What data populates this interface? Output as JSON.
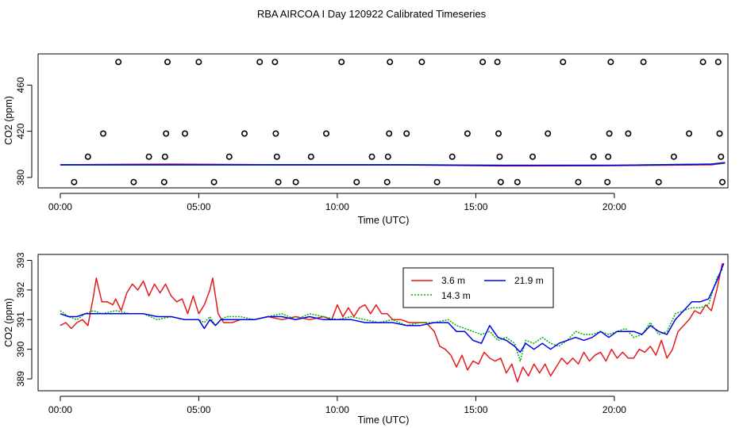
{
  "figure": {
    "title": "RBA AIRCOA I  Day 120922  Calibrated Timeseries"
  },
  "colors": {
    "marker": "#000000",
    "red": "#e41a1c",
    "green": "#00b000",
    "blue": "#0000ee"
  },
  "chart_data": [
    {
      "type": "scatter",
      "title": "",
      "xlabel": "Time (UTC)",
      "ylabel": "CO2 (ppm)",
      "xlim": [
        -0.8,
        24.1
      ],
      "ylim": [
        371,
        487
      ],
      "x_ticks": [
        0,
        5,
        10,
        15,
        20
      ],
      "x_tick_labels": [
        "00:00",
        "05:00",
        "10:00",
        "15:00",
        "20:00"
      ],
      "y_ticks": [
        380,
        420,
        460
      ],
      "y_tick_labels": [
        "380",
        "420",
        "460"
      ],
      "grid": false,
      "markers": [
        {
          "x": 0.5,
          "y": 376
        },
        {
          "x": 1.0,
          "y": 398
        },
        {
          "x": 1.55,
          "y": 418
        },
        {
          "x": 2.1,
          "y": 480
        },
        {
          "x": 2.65,
          "y": 376
        },
        {
          "x": 3.2,
          "y": 398
        },
        {
          "x": 3.75,
          "y": 376
        },
        {
          "x": 3.78,
          "y": 398
        },
        {
          "x": 3.82,
          "y": 418
        },
        {
          "x": 3.87,
          "y": 480
        },
        {
          "x": 4.5,
          "y": 418
        },
        {
          "x": 5.0,
          "y": 480
        },
        {
          "x": 5.55,
          "y": 376
        },
        {
          "x": 6.1,
          "y": 398
        },
        {
          "x": 6.65,
          "y": 418
        },
        {
          "x": 7.2,
          "y": 480
        },
        {
          "x": 7.75,
          "y": 480
        },
        {
          "x": 7.78,
          "y": 418
        },
        {
          "x": 7.82,
          "y": 398
        },
        {
          "x": 7.87,
          "y": 376
        },
        {
          "x": 8.5,
          "y": 376
        },
        {
          "x": 9.05,
          "y": 398
        },
        {
          "x": 9.6,
          "y": 418
        },
        {
          "x": 10.15,
          "y": 480
        },
        {
          "x": 10.7,
          "y": 376
        },
        {
          "x": 11.25,
          "y": 398
        },
        {
          "x": 11.8,
          "y": 376
        },
        {
          "x": 11.83,
          "y": 398
        },
        {
          "x": 11.87,
          "y": 418
        },
        {
          "x": 11.9,
          "y": 480
        },
        {
          "x": 12.5,
          "y": 418
        },
        {
          "x": 13.05,
          "y": 480
        },
        {
          "x": 13.6,
          "y": 376
        },
        {
          "x": 14.15,
          "y": 398
        },
        {
          "x": 14.7,
          "y": 418
        },
        {
          "x": 15.25,
          "y": 480
        },
        {
          "x": 15.78,
          "y": 480
        },
        {
          "x": 15.82,
          "y": 418
        },
        {
          "x": 15.86,
          "y": 398
        },
        {
          "x": 15.9,
          "y": 376
        },
        {
          "x": 16.5,
          "y": 376
        },
        {
          "x": 17.05,
          "y": 398
        },
        {
          "x": 17.6,
          "y": 418
        },
        {
          "x": 18.15,
          "y": 480
        },
        {
          "x": 18.7,
          "y": 376
        },
        {
          "x": 19.25,
          "y": 398
        },
        {
          "x": 19.75,
          "y": 376
        },
        {
          "x": 19.78,
          "y": 398
        },
        {
          "x": 19.82,
          "y": 418
        },
        {
          "x": 19.87,
          "y": 480
        },
        {
          "x": 20.5,
          "y": 418
        },
        {
          "x": 21.05,
          "y": 480
        },
        {
          "x": 21.6,
          "y": 376
        },
        {
          "x": 22.15,
          "y": 398
        },
        {
          "x": 22.7,
          "y": 418
        },
        {
          "x": 23.2,
          "y": 480
        },
        {
          "x": 23.75,
          "y": 480
        },
        {
          "x": 23.8,
          "y": 418
        },
        {
          "x": 23.85,
          "y": 398
        },
        {
          "x": 23.9,
          "y": 376
        }
      ],
      "lines": [
        {
          "color": "red",
          "x": [
            0,
            4,
            8,
            12,
            16,
            20,
            23.5,
            24
          ],
          "y": [
            391,
            391.5,
            391,
            391,
            390,
            390.2,
            391,
            392.5
          ]
        },
        {
          "color": "green",
          "x": [
            0,
            4,
            8,
            12,
            16,
            20,
            23.5,
            24
          ],
          "y": [
            391,
            391,
            391,
            391,
            390.5,
            390.4,
            391.5,
            392.5
          ]
        },
        {
          "color": "blue",
          "x": [
            0,
            4,
            8,
            12,
            16,
            20,
            23.5,
            24
          ],
          "y": [
            391,
            391,
            391,
            391,
            390.4,
            390.5,
            391.5,
            392.8
          ]
        }
      ]
    },
    {
      "type": "line",
      "title": "",
      "xlabel": "Time (UTC)",
      "ylabel": "CO2 (ppm)",
      "xlim": [
        -0.8,
        24.1
      ],
      "ylim": [
        388.6,
        393.2
      ],
      "x_ticks": [
        0,
        5,
        10,
        15,
        20
      ],
      "x_tick_labels": [
        "00:00",
        "05:00",
        "10:00",
        "15:00",
        "20:00"
      ],
      "y_ticks": [
        389,
        390,
        391,
        392,
        393
      ],
      "y_tick_labels": [
        "389",
        "390",
        "391",
        "392",
        "393"
      ],
      "grid": false,
      "legend": "top-center",
      "series": [
        {
          "name": "3.6 m",
          "color": "red",
          "style": "solid",
          "x": [
            0,
            0.2,
            0.4,
            0.6,
            0.8,
            1.0,
            1.2,
            1.3,
            1.5,
            1.7,
            1.9,
            2.0,
            2.2,
            2.4,
            2.6,
            2.8,
            3.0,
            3.2,
            3.4,
            3.6,
            3.8,
            4.0,
            4.2,
            4.4,
            4.6,
            4.8,
            5.0,
            5.2,
            5.4,
            5.5,
            5.7,
            5.9,
            6.2,
            6.5,
            7.0,
            7.5,
            8.0,
            8.5,
            9.0,
            9.5,
            9.8,
            10.0,
            10.2,
            10.4,
            10.6,
            10.8,
            11.0,
            11.2,
            11.4,
            11.6,
            11.8,
            12.0,
            12.3,
            12.6,
            12.9,
            13.2,
            13.5,
            13.7,
            13.9,
            14.1,
            14.3,
            14.5,
            14.7,
            14.9,
            15.1,
            15.3,
            15.5,
            15.7,
            15.9,
            16.1,
            16.3,
            16.5,
            16.7,
            16.9,
            17.1,
            17.3,
            17.5,
            17.7,
            17.9,
            18.1,
            18.3,
            18.5,
            18.7,
            18.9,
            19.1,
            19.3,
            19.5,
            19.7,
            19.9,
            20.1,
            20.3,
            20.5,
            20.7,
            20.9,
            21.1,
            21.3,
            21.5,
            21.7,
            21.9,
            22.1,
            22.3,
            22.5,
            22.7,
            22.9,
            23.1,
            23.3,
            23.5,
            23.7,
            23.9
          ],
          "y": [
            390.8,
            390.9,
            390.7,
            390.9,
            391.0,
            390.8,
            391.8,
            392.4,
            391.6,
            391.6,
            391.5,
            391.7,
            391.3,
            391.9,
            392.2,
            392.0,
            392.3,
            391.8,
            392.2,
            391.9,
            392.2,
            391.8,
            391.6,
            391.7,
            391.2,
            391.8,
            391.2,
            391.5,
            392.0,
            392.4,
            391.2,
            390.9,
            390.9,
            391.0,
            391.0,
            391.1,
            391.0,
            391.1,
            391.0,
            391.1,
            391.0,
            391.5,
            391.1,
            391.4,
            391.1,
            391.4,
            391.5,
            391.2,
            391.5,
            391.2,
            391.2,
            391.0,
            391.0,
            390.9,
            390.9,
            390.9,
            390.6,
            390.1,
            390.0,
            389.8,
            389.4,
            389.8,
            389.3,
            389.6,
            389.5,
            389.9,
            389.7,
            389.6,
            389.7,
            389.2,
            389.5,
            388.9,
            389.4,
            389.1,
            389.5,
            389.2,
            389.5,
            389.1,
            389.4,
            389.7,
            389.5,
            389.7,
            389.5,
            389.9,
            389.6,
            389.8,
            389.9,
            389.6,
            390.0,
            389.7,
            389.9,
            389.7,
            389.7,
            390.0,
            389.9,
            390.1,
            389.8,
            390.3,
            389.7,
            390.0,
            390.6,
            390.8,
            391.0,
            391.3,
            391.2,
            391.5,
            391.3,
            392.0,
            392.9
          ]
        },
        {
          "name": "14.3 m",
          "color": "green",
          "style": "dotted",
          "x": [
            0,
            0.3,
            0.6,
            0.9,
            1.2,
            1.5,
            2.0,
            2.5,
            3.0,
            3.5,
            4.0,
            4.5,
            5.0,
            5.2,
            5.4,
            5.6,
            5.8,
            6.0,
            6.5,
            7.0,
            7.5,
            8.0,
            8.5,
            9.0,
            9.5,
            10.0,
            10.5,
            11.0,
            11.5,
            12.0,
            12.5,
            13.0,
            13.5,
            14.0,
            14.3,
            14.6,
            14.9,
            15.2,
            15.5,
            15.8,
            16.1,
            16.4,
            16.6,
            16.8,
            17.1,
            17.4,
            17.7,
            18.0,
            18.3,
            18.6,
            18.9,
            19.2,
            19.5,
            19.8,
            20.1,
            20.4,
            20.7,
            21.0,
            21.3,
            21.6,
            21.9,
            22.2,
            22.5,
            22.8,
            23.1,
            23.4,
            23.7,
            23.9
          ],
          "y": [
            391.3,
            391.1,
            391.0,
            391.2,
            391.3,
            391.2,
            391.3,
            391.2,
            391.2,
            391.0,
            391.1,
            391.0,
            391.0,
            390.9,
            391.1,
            390.8,
            391.0,
            391.1,
            391.1,
            391.0,
            391.1,
            391.2,
            391.0,
            391.2,
            391.1,
            391.0,
            391.1,
            391.0,
            390.9,
            391.0,
            390.8,
            390.9,
            390.9,
            391.0,
            390.8,
            390.7,
            390.6,
            390.5,
            390.6,
            390.3,
            390.4,
            390.2,
            389.6,
            390.3,
            390.2,
            390.4,
            390.2,
            390.1,
            390.3,
            390.6,
            390.5,
            390.5,
            390.6,
            390.5,
            390.6,
            390.7,
            390.4,
            390.5,
            390.9,
            390.5,
            390.6,
            391.2,
            391.3,
            391.4,
            391.4,
            391.5,
            392.4,
            392.7
          ]
        },
        {
          "name": "21.9 m",
          "color": "blue",
          "style": "solid",
          "x": [
            0,
            0.3,
            0.6,
            0.9,
            1.2,
            1.5,
            2.0,
            2.5,
            3.0,
            3.5,
            4.0,
            4.5,
            5.0,
            5.2,
            5.4,
            5.6,
            5.8,
            6.0,
            6.5,
            7.0,
            7.5,
            8.0,
            8.5,
            9.0,
            9.5,
            10.0,
            10.5,
            11.0,
            11.5,
            12.0,
            12.5,
            13.0,
            13.5,
            14.0,
            14.3,
            14.6,
            14.9,
            15.2,
            15.5,
            15.8,
            16.1,
            16.4,
            16.6,
            16.8,
            17.1,
            17.4,
            17.7,
            18.0,
            18.3,
            18.6,
            18.9,
            19.2,
            19.5,
            19.8,
            20.1,
            20.4,
            20.7,
            21.0,
            21.3,
            21.6,
            21.9,
            22.2,
            22.5,
            22.8,
            23.1,
            23.4,
            23.7,
            23.95
          ],
          "y": [
            391.2,
            391.1,
            391.1,
            391.2,
            391.2,
            391.2,
            391.2,
            391.2,
            391.2,
            391.1,
            391.1,
            391.0,
            391.0,
            390.7,
            391.0,
            390.8,
            391.0,
            391.0,
            391.0,
            391.0,
            391.1,
            391.1,
            391.0,
            391.1,
            391.0,
            391.0,
            391.0,
            390.9,
            390.9,
            390.9,
            390.8,
            390.8,
            390.9,
            390.9,
            390.6,
            390.6,
            390.3,
            390.2,
            390.8,
            390.4,
            390.3,
            390.1,
            389.9,
            390.2,
            390.0,
            390.2,
            390.0,
            390.2,
            390.3,
            390.4,
            390.3,
            390.4,
            390.6,
            390.4,
            390.6,
            390.6,
            390.6,
            390.5,
            390.8,
            390.6,
            390.5,
            391.0,
            391.3,
            391.6,
            391.6,
            391.7,
            392.3,
            392.9
          ]
        }
      ]
    }
  ]
}
